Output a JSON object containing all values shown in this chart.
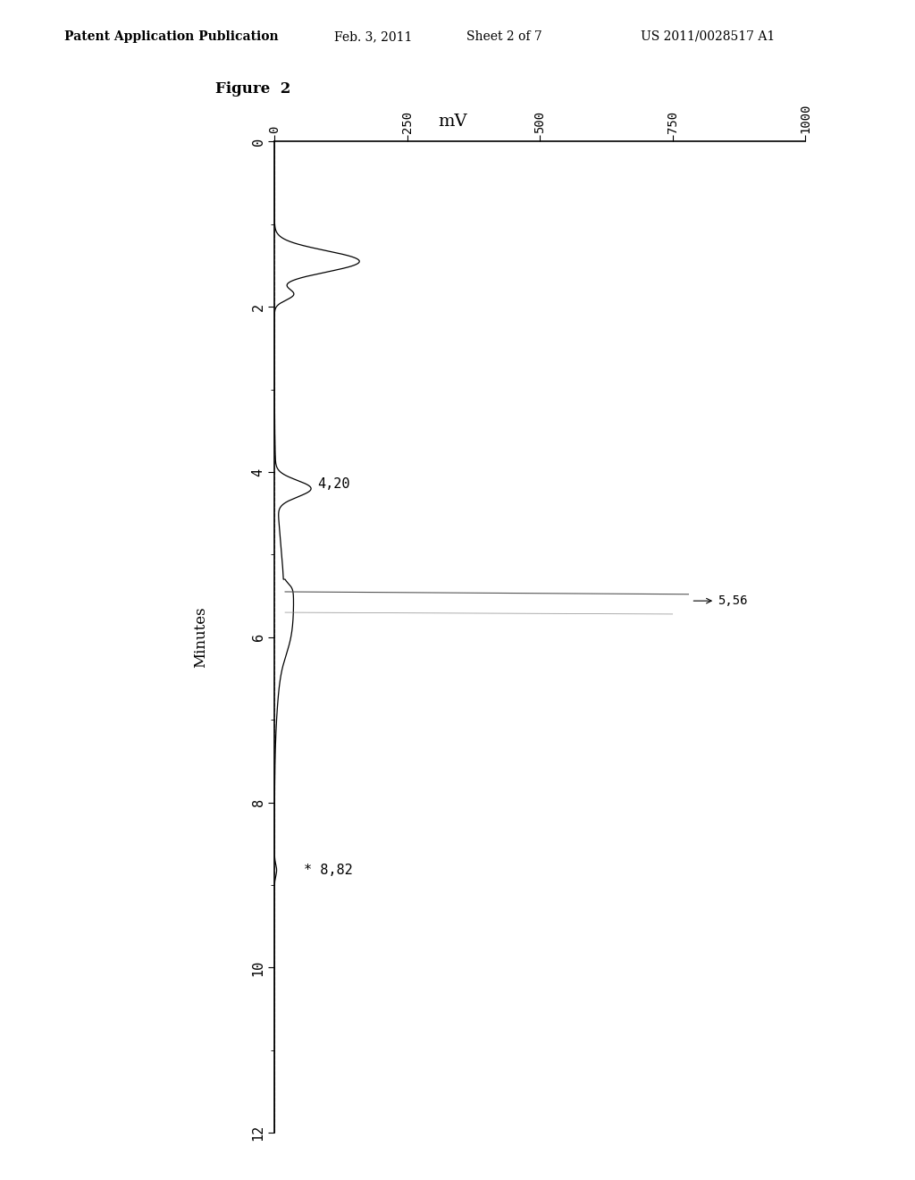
{
  "header_left": "Patent Application Publication",
  "header_mid": "Feb. 3, 2011   Sheet 2 of 7",
  "header_right": "US 2011/0028517 A1",
  "figure_label": "Figure  2",
  "x_label": "mV",
  "y_label": "Minutes",
  "x_ticks": [
    0,
    250,
    500,
    750,
    1000
  ],
  "y_ticks": [
    0,
    2,
    4,
    6,
    8,
    10,
    12
  ],
  "y_min": 0,
  "y_max": 12,
  "x_min": 0,
  "x_max": 1000,
  "label_420": "4,20",
  "label_556": "5,56",
  "label_882": "* 8,82",
  "background_color": "#ffffff",
  "line_color": "#000000",
  "font_color": "#000000"
}
